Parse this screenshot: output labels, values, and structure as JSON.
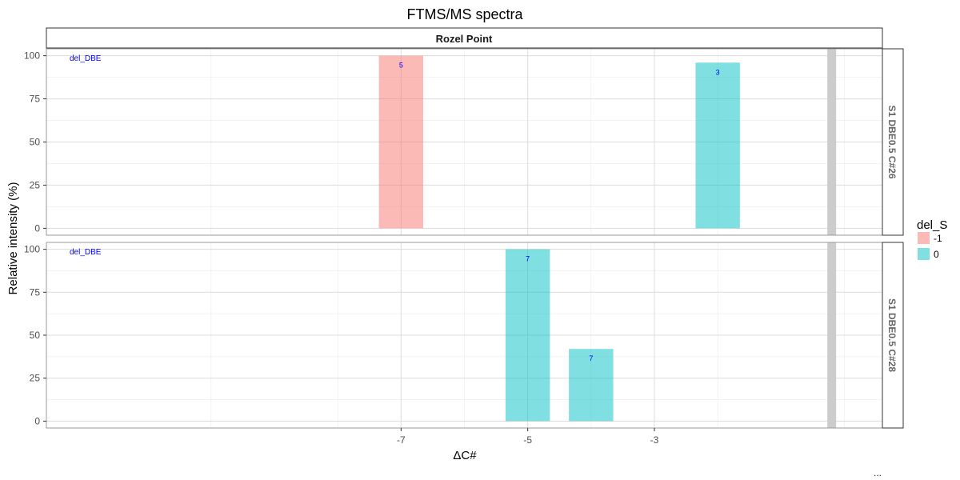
{
  "chart_data": {
    "type": "bar",
    "title": "FTMS/MS spectra",
    "xlabel": "ΔC#",
    "ylabel": "Relative intensity (%)",
    "facet_column": "Rozel Point",
    "x_ticks": [
      -7,
      -5,
      -3
    ],
    "x_tick_labels": [
      "-7",
      "-5",
      "-3"
    ],
    "xlim": [
      -12.6,
      0.6
    ],
    "ylim": [
      -4,
      104
    ],
    "y_ticks": [
      0,
      25,
      50,
      75,
      100
    ],
    "y_tick_labels": [
      "0",
      "25",
      "50",
      "75",
      "100"
    ],
    "bar_width": 0.7,
    "reference_x": -0.2,
    "grid": true,
    "legend": {
      "title": "del_S",
      "position": "right",
      "entries": [
        {
          "label": "-1",
          "color": "#F8766D"
        },
        {
          "label": "0",
          "color": "#00BFC4"
        }
      ]
    },
    "panels": [
      {
        "label": "S1 DBE0.5 C#26",
        "corner_text": "del_DBE",
        "bars": [
          {
            "x": -7,
            "value": 100,
            "del_S": "-1",
            "label": "5"
          },
          {
            "x": -2,
            "value": 96,
            "del_S": "0",
            "label": "3"
          }
        ]
      },
      {
        "label": "S1 DBE0.5 C#28",
        "corner_text": "del_DBE",
        "bars": [
          {
            "x": -5,
            "value": 100,
            "del_S": "0",
            "label": "7"
          },
          {
            "x": -4,
            "value": 42,
            "del_S": "0",
            "label": "7"
          }
        ]
      }
    ]
  },
  "footer": {
    "ellipsis": "..."
  }
}
